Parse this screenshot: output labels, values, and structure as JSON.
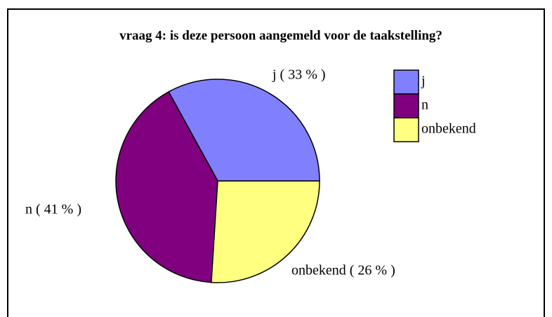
{
  "chart_data": {
    "type": "pie",
    "title": "vraag 4: is deze persoon aangemeld voor de taakstelling?",
    "categories": [
      "j",
      "n",
      "onbekend"
    ],
    "values": [
      33,
      41,
      26
    ],
    "value_labels": [
      "j  ( 33 % )",
      "n  ( 41 % )",
      "onbekend   ( 26 % )"
    ],
    "colors": [
      "#8080ff",
      "#800080",
      "#ffff80"
    ]
  }
}
